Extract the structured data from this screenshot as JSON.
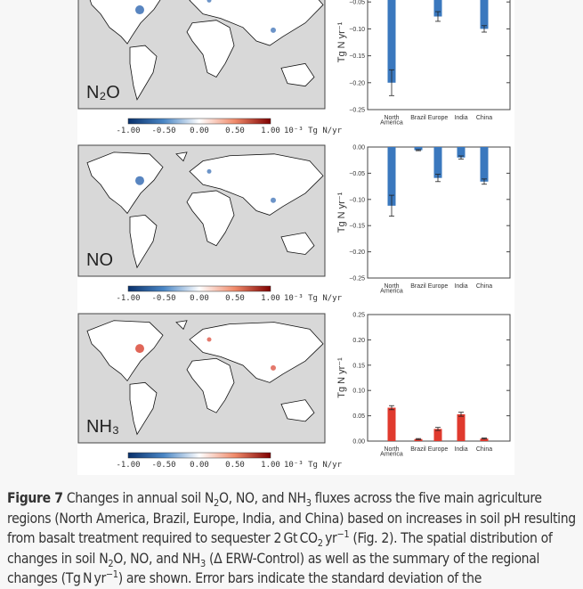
{
  "figure": {
    "colorbar": {
      "ticks": [
        "-1.00",
        "-0.50",
        "0.00",
        "0.50",
        "1.00"
      ],
      "unit": "10⁻³ Tg N/yr",
      "colors": [
        "#08306b",
        "#4a86c5",
        "#ffffff",
        "#f08a6a",
        "#7f0000"
      ]
    },
    "panels": [
      {
        "map_label": "N₂O"
      },
      {
        "map_label": "NO"
      },
      {
        "map_label": "NH₃"
      }
    ]
  },
  "chart_data": [
    {
      "type": "bar",
      "categories": [
        "North America",
        "Brazil",
        "Europe",
        "India",
        "China"
      ],
      "values": [
        -0.2,
        -0.005,
        -0.077,
        -0.02,
        -0.1
      ],
      "errors": [
        0.024,
        0.002,
        0.009,
        0.003,
        0.006
      ],
      "ylabel": "Tg N yr⁻¹",
      "yticks": [
        "0.00",
        "-0.05",
        "-0.10",
        "-0.15",
        "-0.20",
        "-0.25"
      ],
      "ylim": [
        -0.25,
        0
      ],
      "color": "#3a78be"
    },
    {
      "type": "bar",
      "categories": [
        "North America",
        "Brazil",
        "Europe",
        "India",
        "China"
      ],
      "values": [
        -0.112,
        -0.006,
        -0.059,
        -0.02,
        -0.066
      ],
      "errors": [
        0.02,
        0.001,
        0.007,
        0.003,
        0.005
      ],
      "ylabel": "Tg N yr⁻¹",
      "yticks": [
        "0.00",
        "-0.05",
        "-0.10",
        "-0.15",
        "-0.20",
        "-0.25"
      ],
      "ylim": [
        -0.25,
        0
      ],
      "color": "#3a78be"
    },
    {
      "type": "bar",
      "categories": [
        "North America",
        "Brazil",
        "Europe",
        "India",
        "China"
      ],
      "values": [
        0.066,
        0.004,
        0.024,
        0.053,
        0.005
      ],
      "errors": [
        0.004,
        0.001,
        0.003,
        0.004,
        0.001
      ],
      "ylabel": "Tg N yr⁻¹",
      "yticks": [
        "0.00",
        "0.05",
        "0.10",
        "0.15",
        "0.20",
        "0.25"
      ],
      "ylim": [
        0,
        0.25
      ],
      "color": "#e03a2e"
    }
  ],
  "caption": {
    "label": "Figure 7",
    "text_html": " Changes in annual soil N<sub>2</sub>O, NO, and NH<sub>3</sub> fluxes across the five main agriculture regions (North America, Brazil, Europe, India, and China) based on increases in soil pH resulting from basalt treatment required to sequester 2 Gt CO<sub>2</sub> yr<sup>−1</sup> (Fig. 2). The spatial distribution of changes in soil N<sub>2</sub>O, NO, and NH<sub>3</sub> (Δ ERW-Control) as well as the summary of the regional changes (Tg N yr<sup>−1</sup>) are shown. Error bars indicate the standard deviation of the"
  }
}
